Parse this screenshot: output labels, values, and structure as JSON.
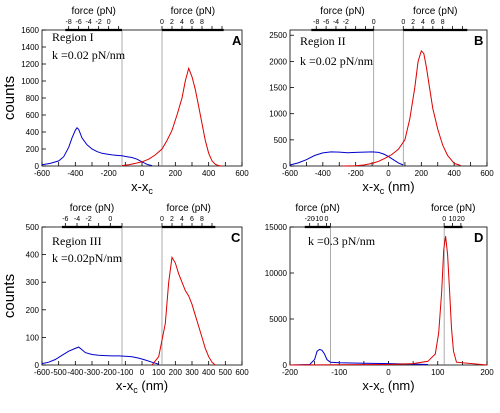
{
  "chart_data": [
    {
      "panel": "A",
      "type": "line",
      "annotation_lines": [
        "Region I",
        "k =0.02 pN/nm"
      ],
      "ylabel": "counts",
      "xlabel": "x-x",
      "xlabel_sub": "c",
      "xlabel_unit": "",
      "xlim": [
        -600,
        600
      ],
      "ylim": [
        0,
        1600
      ],
      "xticks": [
        -600,
        -500,
        -400,
        -300,
        -200,
        -100,
        0,
        100,
        200,
        300,
        400,
        500,
        600
      ],
      "xticklabels": [
        "-600",
        "",
        "-400",
        "",
        "-200",
        "",
        "0",
        "",
        "200",
        "",
        "400",
        "",
        "600"
      ],
      "yticks": [
        0,
        200,
        400,
        600,
        800,
        1000,
        1200,
        1400,
        1600
      ],
      "yticklabels": [
        "0",
        "200",
        "400",
        "600",
        "800",
        "1000",
        "1200",
        "1400",
        "1600"
      ],
      "vlines": [
        -120,
        120
      ],
      "top_axes": [
        {
          "label": "force (pN)",
          "tick_x": [
            -440,
            -380,
            -320,
            -260,
            -200,
            -140
          ],
          "ticklabels": [
            "-8",
            "-6",
            "-4",
            "-2",
            "0",
            ""
          ],
          "range": [
            -460,
            -120
          ]
        },
        {
          "label": "force (pN)",
          "tick_x": [
            120,
            180,
            240,
            300,
            360,
            420,
            480
          ],
          "ticklabels": [
            "0",
            "2",
            "4",
            "6",
            "8",
            "",
            ""
          ],
          "range": [
            120,
            490
          ]
        }
      ],
      "series": [
        {
          "color": "#0000cc",
          "x": [
            -600,
            -550,
            -500,
            -470,
            -440,
            -420,
            -400,
            -390,
            -380,
            -360,
            -330,
            -300,
            -270,
            -240,
            -210,
            -180,
            -150,
            -120,
            -90,
            -60,
            -30,
            0,
            30,
            60
          ],
          "y": [
            15,
            30,
            60,
            110,
            220,
            330,
            420,
            450,
            430,
            330,
            250,
            200,
            170,
            150,
            140,
            130,
            125,
            120,
            110,
            100,
            80,
            50,
            20,
            5
          ]
        },
        {
          "color": "#dd0000",
          "x": [
            -120,
            -80,
            -40,
            0,
            40,
            80,
            120,
            150,
            180,
            210,
            240,
            260,
            280,
            300,
            320,
            340,
            360,
            380,
            400,
            420,
            440,
            460,
            480
          ],
          "y": [
            5,
            15,
            30,
            50,
            80,
            130,
            200,
            300,
            420,
            600,
            800,
            1000,
            1150,
            1050,
            900,
            700,
            500,
            300,
            150,
            60,
            20,
            5,
            0
          ]
        }
      ]
    },
    {
      "panel": "B",
      "type": "line",
      "annotation_lines": [
        "Region II",
        "k =0.02 pN/nm"
      ],
      "ylabel": "",
      "xlabel": "x-x",
      "xlabel_sub": "c",
      "xlabel_unit": " (nm)",
      "xlim": [
        -600,
        600
      ],
      "ylim": [
        0,
        2600
      ],
      "xticks": [
        -600,
        -500,
        -400,
        -300,
        -200,
        -100,
        0,
        100,
        200,
        300,
        400,
        500,
        600
      ],
      "xticklabels": [
        "-600",
        "",
        "-400",
        "",
        "-200",
        "",
        "0",
        "",
        "200",
        "",
        "400",
        "",
        "600"
      ],
      "yticks": [
        0,
        500,
        1000,
        1500,
        2000,
        2500
      ],
      "yticklabels": [
        "0",
        "500",
        "1000",
        "1500",
        "2000",
        "2500"
      ],
      "vlines": [
        -90,
        90
      ],
      "top_axes": [
        {
          "label": "force (pN)",
          "tick_x": [
            -440,
            -380,
            -320,
            -260,
            -200,
            -140,
            -90
          ],
          "ticklabels": [
            "-8",
            "-6",
            "-4",
            "-2",
            "",
            "",
            "0"
          ],
          "range": [
            -470,
            -90
          ]
        },
        {
          "label": "force (pN)",
          "tick_x": [
            90,
            150,
            210,
            270,
            330,
            390,
            450
          ],
          "ticklabels": [
            "0",
            "2",
            "4",
            "6",
            "8",
            "",
            ""
          ],
          "range": [
            90,
            480
          ]
        }
      ],
      "series": [
        {
          "color": "#0000cc",
          "x": [
            -600,
            -550,
            -500,
            -450,
            -400,
            -350,
            -300,
            -250,
            -200,
            -150,
            -100,
            -60,
            -30,
            0,
            30,
            60,
            90
          ],
          "y": [
            20,
            60,
            120,
            200,
            250,
            270,
            265,
            255,
            260,
            265,
            270,
            260,
            230,
            180,
            120,
            60,
            20
          ]
        },
        {
          "color": "#dd0000",
          "x": [
            -280,
            -200,
            -150,
            -100,
            -60,
            -20,
            20,
            60,
            100,
            130,
            160,
            180,
            200,
            215,
            230,
            250,
            270,
            300,
            330,
            360,
            400,
            440
          ],
          "y": [
            0,
            5,
            20,
            50,
            90,
            150,
            220,
            320,
            500,
            900,
            1500,
            2000,
            2200,
            2150,
            1900,
            1500,
            1100,
            700,
            400,
            200,
            50,
            10
          ]
        }
      ]
    },
    {
      "panel": "C",
      "type": "line",
      "annotation_lines": [
        "Region III",
        "k =0.02pN/nm"
      ],
      "ylabel": "counts",
      "xlabel": "x-x",
      "xlabel_sub": "c",
      "xlabel_unit": " (nm)",
      "xlim": [
        -600,
        600
      ],
      "ylim": [
        0,
        500
      ],
      "xticks": [
        -600,
        -500,
        -400,
        -300,
        -200,
        -100,
        0,
        100,
        200,
        300,
        400,
        500,
        600
      ],
      "xticklabels": [
        "-600",
        "-500",
        "-400",
        "-300",
        "-200",
        "-100",
        "0",
        "100",
        "200",
        "300",
        "400",
        "500",
        "600"
      ],
      "yticks": [
        0,
        100,
        200,
        300,
        400,
        500
      ],
      "yticklabels": [
        "0",
        "100",
        "200",
        "300",
        "400",
        "500"
      ],
      "vlines": [
        -120,
        120
      ],
      "top_axes": [
        {
          "label": "force (pN)",
          "tick_x": [
            -460,
            -390,
            -320,
            -260,
            -190,
            -120
          ],
          "ticklabels": [
            "-6",
            "-4",
            "-2",
            "",
            "0",
            ""
          ],
          "range": [
            -480,
            -120
          ]
        },
        {
          "label": "force (pN)",
          "tick_x": [
            120,
            180,
            240,
            300,
            360,
            420
          ],
          "ticklabels": [
            "0",
            "2",
            "4",
            "6",
            "8",
            ""
          ],
          "range": [
            120,
            440
          ]
        }
      ],
      "series": [
        {
          "color": "#0000cc",
          "x": [
            -600,
            -560,
            -520,
            -480,
            -440,
            -400,
            -380,
            -360,
            -340,
            -300,
            -260,
            -220,
            -180,
            -140,
            -100,
            -60,
            -20,
            20,
            60,
            100
          ],
          "y": [
            5,
            10,
            20,
            35,
            50,
            60,
            65,
            55,
            45,
            38,
            35,
            34,
            33,
            33,
            32,
            30,
            25,
            18,
            10,
            3
          ]
        },
        {
          "color": "#dd0000",
          "x": [
            60,
            100,
            140,
            160,
            180,
            200,
            220,
            240,
            260,
            280,
            300,
            320,
            340,
            360,
            380,
            400,
            420,
            440
          ],
          "y": [
            0,
            30,
            150,
            300,
            390,
            370,
            330,
            300,
            270,
            250,
            220,
            180,
            140,
            100,
            60,
            30,
            10,
            0
          ]
        }
      ]
    },
    {
      "panel": "D",
      "type": "line",
      "annotation_lines": [
        "k =0.3 pN/nm"
      ],
      "ylabel": "",
      "xlabel": "x-x",
      "xlabel_sub": "c",
      "xlabel_unit": " (nm)",
      "xlim": [
        -200,
        200
      ],
      "ylim": [
        0,
        15000
      ],
      "xticks": [
        -200,
        -150,
        -100,
        -50,
        0,
        50,
        100,
        150,
        200
      ],
      "xticklabels": [
        "-200",
        "",
        "-100",
        "",
        "0",
        "",
        "100",
        "",
        "200"
      ],
      "yticks": [
        0,
        5000,
        10000,
        15000
      ],
      "yticklabels": [
        "0",
        "5000",
        "10000",
        "15000"
      ],
      "vlines": [
        -118,
        113
      ],
      "top_axes": [
        {
          "label": "force (pN)",
          "tick_x": [
            -160,
            -143,
            -126,
            -118
          ],
          "ticklabels": [
            "-20",
            "-10",
            "0",
            ""
          ],
          "range": [
            -170,
            -118
          ]
        },
        {
          "label": "force (pN)",
          "tick_x": [
            113,
            130,
            147
          ],
          "ticklabels": [
            "0",
            "10",
            "20"
          ],
          "range": [
            113,
            150
          ]
        }
      ],
      "series": [
        {
          "color": "#0000cc",
          "x": [
            -200,
            -160,
            -150,
            -145,
            -140,
            -135,
            -130,
            -125,
            -118,
            -100,
            -50,
            0,
            50,
            80
          ],
          "y": [
            0,
            50,
            600,
            1500,
            1700,
            1600,
            1200,
            600,
            300,
            250,
            200,
            150,
            100,
            50
          ]
        },
        {
          "color": "#dd0000",
          "x": [
            -200,
            0,
            50,
            80,
            95,
            102,
            108,
            112,
            116,
            120,
            124,
            128,
            132,
            138,
            200
          ],
          "y": [
            0,
            50,
            150,
            400,
            1200,
            3500,
            8000,
            12500,
            14000,
            12000,
            8000,
            4000,
            1500,
            300,
            0
          ]
        }
      ]
    }
  ]
}
